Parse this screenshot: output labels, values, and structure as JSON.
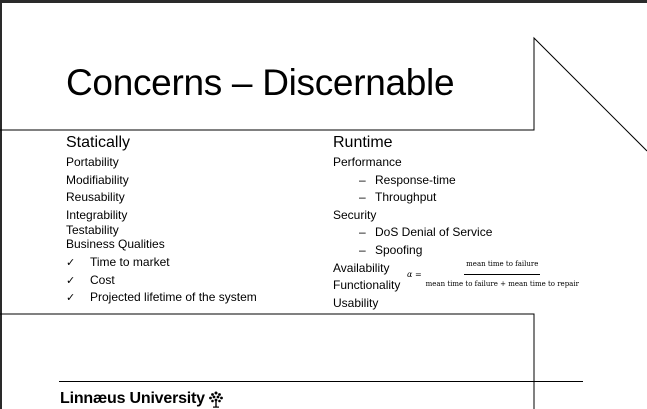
{
  "slide": {
    "title": "Concerns – Discernable",
    "left": {
      "heading": "Statically",
      "items": [
        "Portability",
        "Modifiability",
        "Reusability",
        "Integrability",
        "Testability"
      ],
      "business_heading": "Business Qualities",
      "business_items": [
        "Time to market",
        "Cost",
        "Projected lifetime of the system"
      ]
    },
    "right": {
      "heading": "Runtime",
      "performance": "Performance",
      "performance_items": [
        "Response-time",
        "Throughput"
      ],
      "security": "Security",
      "security_items": [
        "DoS Denial of Service",
        "Spoofing"
      ],
      "availability": "Availability",
      "formula": {
        "lhs": "α =",
        "numerator": "mean time to failure",
        "denominator": "mean time to failure + mean time to repair"
      },
      "functionality": "Functionality",
      "usability": "Usability"
    },
    "symbols": {
      "dash": "–",
      "check": "✓"
    },
    "footer": {
      "logo_text": "Linnæus University",
      "logo_icon": "tree-icon"
    }
  }
}
